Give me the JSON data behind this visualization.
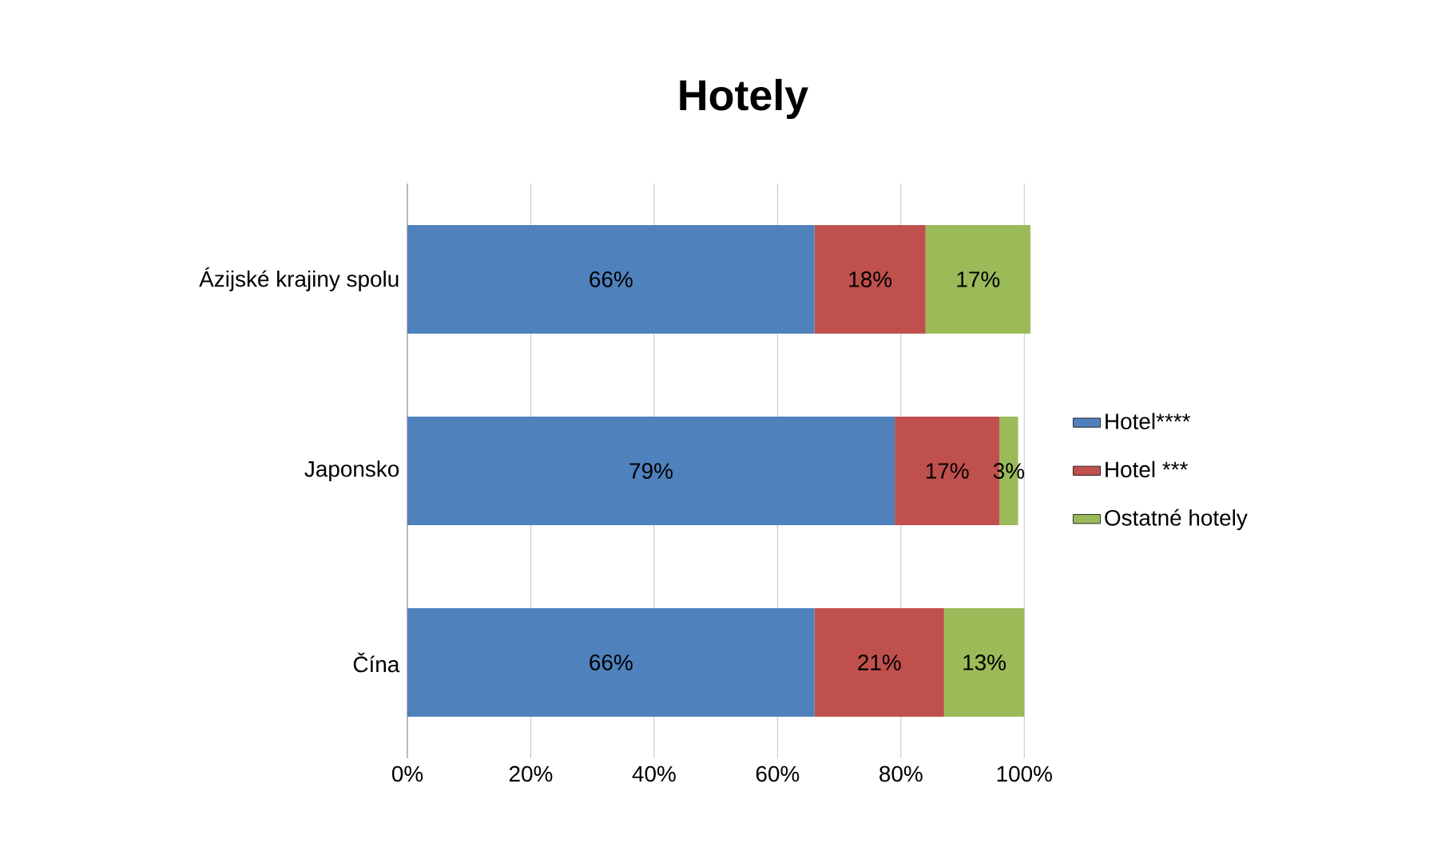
{
  "chart_data": {
    "type": "bar",
    "title": "Hotely",
    "orientation": "horizontal",
    "stacked": true,
    "categories": [
      "Ázijské krajiny spolu",
      "Japonsko",
      "Čína"
    ],
    "series": [
      {
        "name": "Hotel****",
        "color": "#4f81bd",
        "values": [
          66,
          79,
          66
        ],
        "value_labels": [
          "66%",
          "79%",
          "66%"
        ]
      },
      {
        "name": "Hotel ***",
        "color": "#c0504d",
        "values": [
          18,
          17,
          21
        ],
        "value_labels": [
          "18%",
          "17%",
          "21%"
        ]
      },
      {
        "name": "Ostatné hotely",
        "color": "#9bbb59",
        "values": [
          17,
          3,
          13
        ],
        "value_labels": [
          "17%",
          "3%",
          "13%"
        ]
      }
    ],
    "xlim": [
      0,
      101
    ],
    "xticks": [
      {
        "value": 0,
        "label": "0%"
      },
      {
        "value": 20,
        "label": "20%"
      },
      {
        "value": 40,
        "label": "40%"
      },
      {
        "value": 60,
        "label": "60%"
      },
      {
        "value": 80,
        "label": "80%"
      },
      {
        "value": 100,
        "label": "100%"
      }
    ],
    "grid": "x",
    "legend": "right"
  }
}
